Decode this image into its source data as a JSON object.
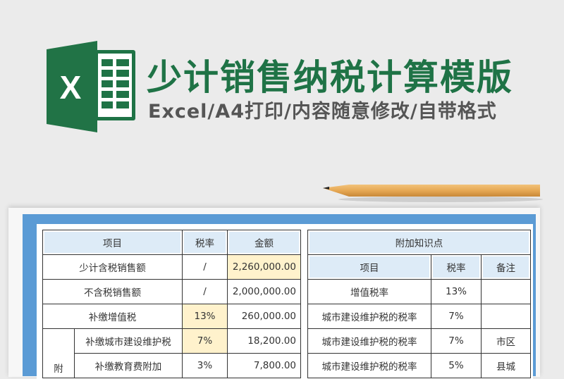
{
  "header": {
    "title": "少计销售纳税计算模版",
    "subtitle": "Excel/A4打印/内容随意修改/自带格式",
    "logo_letter": "X"
  },
  "colors": {
    "brand_green": "#1f7346",
    "frame_blue": "#5b9bd5",
    "header_fill": "#ddebf7",
    "highlight_fill": "#fff2cc"
  },
  "main_table": {
    "headers": [
      "项目",
      "税率",
      "金额"
    ],
    "rows": [
      {
        "item": "少计含税销售额",
        "rate": "/",
        "amount": "2,260,000.00"
      },
      {
        "item": "不含税销售额",
        "rate": "/",
        "amount": "2,000,000.00"
      },
      {
        "item": "补缴增值税",
        "rate": "13%",
        "amount": "260,000.00"
      }
    ],
    "group_label": "附",
    "sub_rows": [
      {
        "item": "补缴城市建设维护税",
        "rate": "7%",
        "amount": "18,200.00"
      },
      {
        "item": "补缴教育费附加",
        "rate": "3%",
        "amount": "7,800.00"
      }
    ]
  },
  "knowledge_table": {
    "title": "附加知识点",
    "headers": [
      "项目",
      "税率",
      "备注"
    ],
    "rows": [
      {
        "item": "增值税率",
        "rate": "13%",
        "note": ""
      },
      {
        "item": "城市建设维护税的税率",
        "rate": "7%",
        "note": ""
      },
      {
        "item": "城市建设维护税的税率",
        "rate": "7%",
        "note": "市区"
      },
      {
        "item": "城市建设维护税的税率",
        "rate": "5%",
        "note": "县城"
      }
    ]
  }
}
